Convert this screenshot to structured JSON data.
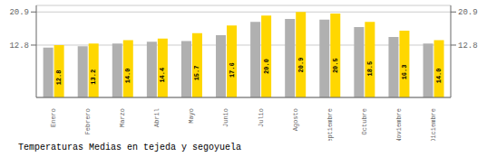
{
  "chart_data": {
    "type": "bar",
    "title": "Temperaturas Medias en tejeda y segoyuela",
    "categories": [
      "Enero",
      "Febrero",
      "Marzo",
      "Abril",
      "Mayo",
      "Junio",
      "Julio",
      "Agosto",
      "Septiembre",
      "Octubre",
      "Noviembre",
      "Diciembre"
    ],
    "series": [
      {
        "color": "#B0B0B0",
        "values": [
          12.2,
          12.5,
          13.2,
          13.6,
          13.8,
          15.2,
          18.5,
          19.2,
          19.0,
          17.2,
          14.8,
          13.2
        ]
      },
      {
        "color": "#FFD700",
        "values": [
          12.8,
          13.2,
          14.0,
          14.4,
          15.7,
          17.6,
          20.0,
          20.9,
          20.5,
          18.5,
          16.3,
          14.0
        ],
        "data_labels": true,
        "value_labels": [
          "12.8",
          "13.2",
          "14.0",
          "14.4",
          "15.7",
          "17.6",
          "20.0",
          "20.9",
          "20.5",
          "18.5",
          "16.3",
          "14.0"
        ]
      }
    ],
    "ylim": [
      0,
      22.5
    ],
    "yticks": [
      12.8,
      20.9
    ],
    "y2lim": [
      0,
      22.5
    ],
    "y2ticks": [
      12.8,
      20.9
    ],
    "grid": true
  }
}
